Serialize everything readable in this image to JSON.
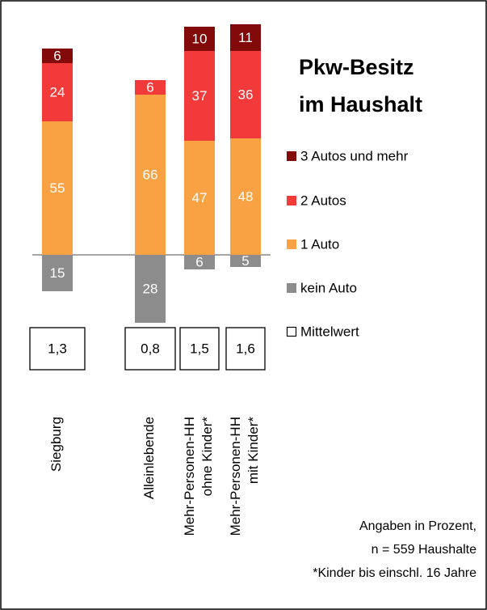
{
  "chart_data": {
    "type": "stacked-bar",
    "title": [
      "Pkw-Besitz",
      "im Haushalt"
    ],
    "categories": [
      "Siegburg",
      "Alleinlebende",
      "Mehr-Personen-HH\nohne Kinder*",
      "Mehr-Personen-HH\nmit Kinder*"
    ],
    "series": [
      {
        "name": "kein Auto",
        "color": "#8c8c8c",
        "direction": "down",
        "values": [
          15,
          28,
          6,
          5
        ]
      },
      {
        "name": "1 Auto",
        "color": "#f8a244",
        "values": [
          55,
          66,
          47,
          48
        ]
      },
      {
        "name": "2 Autos",
        "color": "#f23a3a",
        "values": [
          24,
          6,
          37,
          36
        ]
      },
      {
        "name": "3 Autos und mehr",
        "color": "#820a0a",
        "values": [
          6,
          null,
          10,
          11
        ]
      }
    ],
    "means": {
      "name": "Mittelwert",
      "values": [
        1.3,
        0.8,
        1.5,
        1.6
      ],
      "value_labels": [
        "1,3",
        "0,8",
        "1,5",
        "1,6"
      ]
    },
    "notes": [
      "Angaben in Prozent,",
      "n = 559 Haushalte",
      "*Kinder bis einschl. 16 Jahre"
    ]
  }
}
